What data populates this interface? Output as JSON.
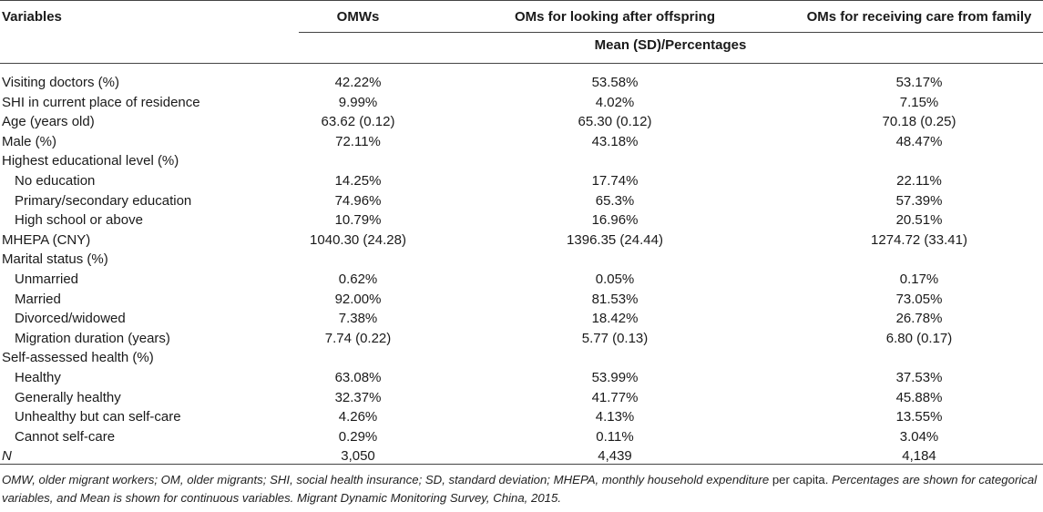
{
  "header": {
    "col0": "Variables",
    "col1": "OMWs",
    "col2": "OMs for looking after offspring",
    "col3": "OMs for receiving care from family",
    "subheader": "Mean (SD)/Percentages"
  },
  "rows": [
    {
      "label": "Visiting doctors (%)",
      "indent": false,
      "v1": "42.22%",
      "v2": "53.58%",
      "v3": "53.17%"
    },
    {
      "label": "SHI in current place of residence",
      "indent": false,
      "v1": "9.99%",
      "v2": "4.02%",
      "v3": "7.15%"
    },
    {
      "label": "Age (years old)",
      "indent": false,
      "v1": "63.62 (0.12)",
      "v2": "65.30 (0.12)",
      "v3": "70.18 (0.25)"
    },
    {
      "label": "Male (%)",
      "indent": false,
      "v1": "72.11%",
      "v2": "43.18%",
      "v3": "48.47%"
    },
    {
      "label": "Highest educational level (%)",
      "indent": false,
      "v1": "",
      "v2": "",
      "v3": ""
    },
    {
      "label": "No education",
      "indent": true,
      "v1": "14.25%",
      "v2": "17.74%",
      "v3": "22.11%"
    },
    {
      "label": "Primary/secondary education",
      "indent": true,
      "v1": "74.96%",
      "v2": "65.3%",
      "v3": "57.39%"
    },
    {
      "label": "High school or above",
      "indent": true,
      "v1": "10.79%",
      "v2": "16.96%",
      "v3": "20.51%"
    },
    {
      "label": "MHEPA (CNY)",
      "indent": false,
      "v1": "1040.30 (24.28)",
      "v2": "1396.35 (24.44)",
      "v3": "1274.72 (33.41)"
    },
    {
      "label": "Marital status (%)",
      "indent": false,
      "v1": "",
      "v2": "",
      "v3": ""
    },
    {
      "label": "Unmarried",
      "indent": true,
      "v1": "0.62%",
      "v2": "0.05%",
      "v3": "0.17%"
    },
    {
      "label": "Married",
      "indent": true,
      "v1": "92.00%",
      "v2": "81.53%",
      "v3": "73.05%"
    },
    {
      "label": "Divorced/widowed",
      "indent": true,
      "v1": "7.38%",
      "v2": "18.42%",
      "v3": "26.78%"
    },
    {
      "label": "Migration duration (years)",
      "indent": true,
      "v1": "7.74 (0.22)",
      "v2": "5.77 (0.13)",
      "v3": "6.80 (0.17)"
    },
    {
      "label": "Self-assessed health (%)",
      "indent": false,
      "v1": "",
      "v2": "",
      "v3": ""
    },
    {
      "label": "Healthy",
      "indent": true,
      "v1": "63.08%",
      "v2": "53.99%",
      "v3": "37.53%"
    },
    {
      "label": "Generally healthy",
      "indent": true,
      "v1": "32.37%",
      "v2": "41.77%",
      "v3": "45.88%"
    },
    {
      "label": "Unhealthy but can self-care",
      "indent": true,
      "v1": "4.26%",
      "v2": "4.13%",
      "v3": "13.55%"
    },
    {
      "label": "Cannot self-care",
      "indent": true,
      "v1": "0.29%",
      "v2": "0.11%",
      "v3": "3.04%"
    },
    {
      "label": "N",
      "indent": false,
      "italic": true,
      "v1": "3,050",
      "v2": "4,439",
      "v3": "4,184"
    }
  ],
  "footnote": {
    "part1": "OMW, older migrant workers; OM, older migrants; SHI, social health insurance; SD, standard deviation; MHEPA, monthly household expenditure",
    "part2": " per capita. ",
    "part3": "Percentages are shown for categorical variables, and Mean is shown for continuous variables. Migrant Dynamic Monitoring Survey, China, 2015."
  }
}
